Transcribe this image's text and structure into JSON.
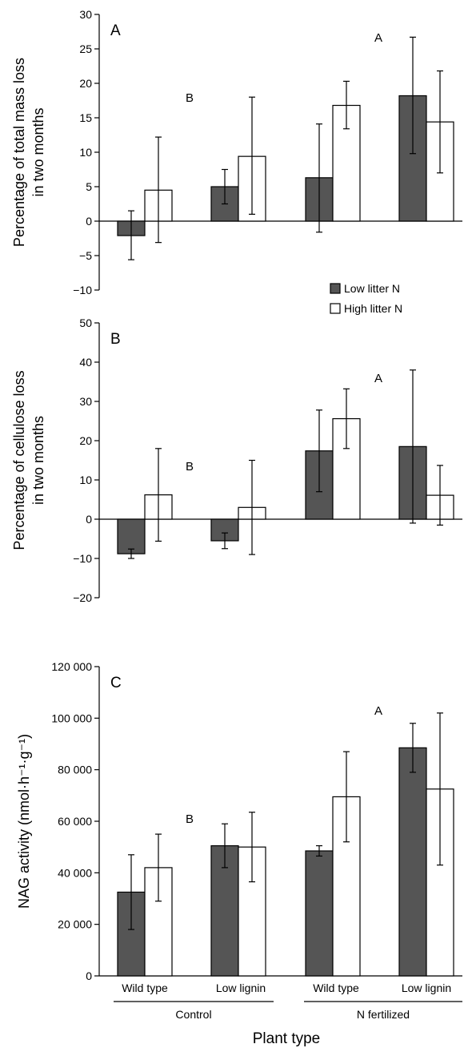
{
  "colors": {
    "low_n": "#555555",
    "high_n": "#ffffff",
    "axis": "#000000"
  },
  "legend": {
    "items": [
      "Low litter N",
      "High litter N"
    ],
    "placement": "right, below panel A"
  },
  "groups": [
    "Wild type",
    "Low lignin",
    "Wild type",
    "Low lignin"
  ],
  "treatments": [
    "Control",
    "N fertilized"
  ],
  "xlabel": "Plant type",
  "chart_data": [
    {
      "type": "bar",
      "panel_label": "A",
      "ylabel": "Percentage of total mass loss in two months",
      "ylabel_lines": [
        "Percentage of total mass loss",
        "in two months"
      ],
      "ylim": [
        -10,
        30
      ],
      "yticks": [
        -10,
        -5,
        0,
        5,
        10,
        15,
        20,
        25,
        30
      ],
      "ytick_labels": [
        "−10",
        "−5",
        "0",
        "5",
        "10",
        "15",
        "20",
        "25",
        "30"
      ],
      "categories": [
        "Wild type",
        "Low lignin",
        "Wild type",
        "Low lignin"
      ],
      "series": [
        {
          "name": "Low litter N",
          "values": [
            -2.1,
            5.0,
            6.3,
            18.2
          ],
          "err_low": [
            -5.6,
            2.5,
            -1.6,
            9.8
          ],
          "err_high": [
            1.5,
            7.5,
            14.1,
            26.7
          ]
        },
        {
          "name": "High litter N",
          "values": [
            4.5,
            9.4,
            16.8,
            14.4
          ],
          "err_low": [
            -3.1,
            1.0,
            13.4,
            7.0
          ],
          "err_high": [
            12.2,
            18.0,
            20.3,
            21.8
          ]
        }
      ],
      "annotations": [
        {
          "text": "B",
          "group": "Control"
        },
        {
          "text": "A",
          "group": "N fertilized"
        }
      ]
    },
    {
      "type": "bar",
      "panel_label": "B",
      "ylabel": "Percentage of cellulose loss in two months",
      "ylabel_lines": [
        "Percentage of cellulose loss",
        "in two months"
      ],
      "ylim": [
        -20,
        50
      ],
      "yticks": [
        -20,
        -10,
        0,
        10,
        20,
        30,
        40,
        50
      ],
      "ytick_labels": [
        "−20",
        "−10",
        "0",
        "10",
        "20",
        "30",
        "40",
        "50"
      ],
      "categories": [
        "Wild type",
        "Low lignin",
        "Wild type",
        "Low lignin"
      ],
      "series": [
        {
          "name": "Low litter N",
          "values": [
            -8.8,
            -5.5,
            17.4,
            18.5
          ],
          "err_low": [
            -10.0,
            -7.5,
            7.0,
            -1.0
          ],
          "err_high": [
            -7.6,
            -3.5,
            27.8,
            38.0
          ]
        },
        {
          "name": "High litter N",
          "values": [
            6.2,
            3.0,
            25.6,
            6.1
          ],
          "err_low": [
            -5.6,
            -9.0,
            18.0,
            -1.5
          ],
          "err_high": [
            18.0,
            15.0,
            33.2,
            13.7
          ]
        }
      ],
      "annotations": [
        {
          "text": "B",
          "group": "Control"
        },
        {
          "text": "A",
          "group": "N fertilized"
        }
      ]
    },
    {
      "type": "bar",
      "panel_label": "C",
      "ylabel": "NAG activity (nmol·h⁻¹·g⁻¹)",
      "ylabel_lines": [
        "NAG activity (nmol·h⁻¹·g⁻¹)"
      ],
      "ylim": [
        0,
        120000
      ],
      "yticks": [
        0,
        20000,
        40000,
        60000,
        80000,
        100000,
        120000
      ],
      "ytick_labels": [
        "0",
        "20 000",
        "40 000",
        "60 000",
        "80 000",
        "100 000",
        "120 000"
      ],
      "categories": [
        "Wild type",
        "Low lignin",
        "Wild type",
        "Low lignin"
      ],
      "series": [
        {
          "name": "Low litter N",
          "values": [
            32500,
            50500,
            48500,
            88500
          ],
          "err_low": [
            18000,
            42000,
            46500,
            79000
          ],
          "err_high": [
            47000,
            59000,
            50500,
            98000
          ]
        },
        {
          "name": "High litter N",
          "values": [
            42000,
            50000,
            69500,
            72500
          ],
          "err_low": [
            29000,
            36500,
            52000,
            43000
          ],
          "err_high": [
            55000,
            63500,
            87000,
            102000
          ]
        }
      ],
      "annotations": [
        {
          "text": "B",
          "group": "Control"
        },
        {
          "text": "A",
          "group": "N fertilized"
        }
      ]
    }
  ]
}
